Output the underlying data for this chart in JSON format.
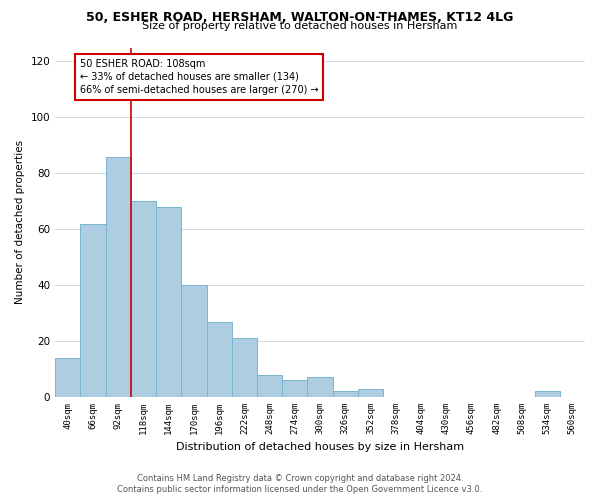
{
  "title": "50, ESHER ROAD, HERSHAM, WALTON-ON-THAMES, KT12 4LG",
  "subtitle": "Size of property relative to detached houses in Hersham",
  "xlabel": "Distribution of detached houses by size in Hersham",
  "ylabel": "Number of detached properties",
  "bar_labels": [
    "40sqm",
    "66sqm",
    "92sqm",
    "118sqm",
    "144sqm",
    "170sqm",
    "196sqm",
    "222sqm",
    "248sqm",
    "274sqm",
    "300sqm",
    "326sqm",
    "352sqm",
    "378sqm",
    "404sqm",
    "430sqm",
    "456sqm",
    "482sqm",
    "508sqm",
    "534sqm",
    "560sqm"
  ],
  "bar_values": [
    14,
    62,
    86,
    70,
    68,
    40,
    27,
    21,
    8,
    6,
    7,
    2,
    3,
    0,
    0,
    0,
    0,
    0,
    0,
    2,
    0
  ],
  "bar_color": "#aecde1",
  "bar_edge_color": "#7ab4d0",
  "ylim": [
    0,
    125
  ],
  "yticks": [
    0,
    20,
    40,
    60,
    80,
    100,
    120
  ],
  "vline_color": "#cc0000",
  "annotation_box_text": "50 ESHER ROAD: 108sqm\n← 33% of detached houses are smaller (134)\n66% of semi-detached houses are larger (270) →",
  "footer_line1": "Contains HM Land Registry data © Crown copyright and database right 2024.",
  "footer_line2": "Contains public sector information licensed under the Open Government Licence v3.0.",
  "background_color": "#ffffff",
  "grid_color": "#ccdde8"
}
